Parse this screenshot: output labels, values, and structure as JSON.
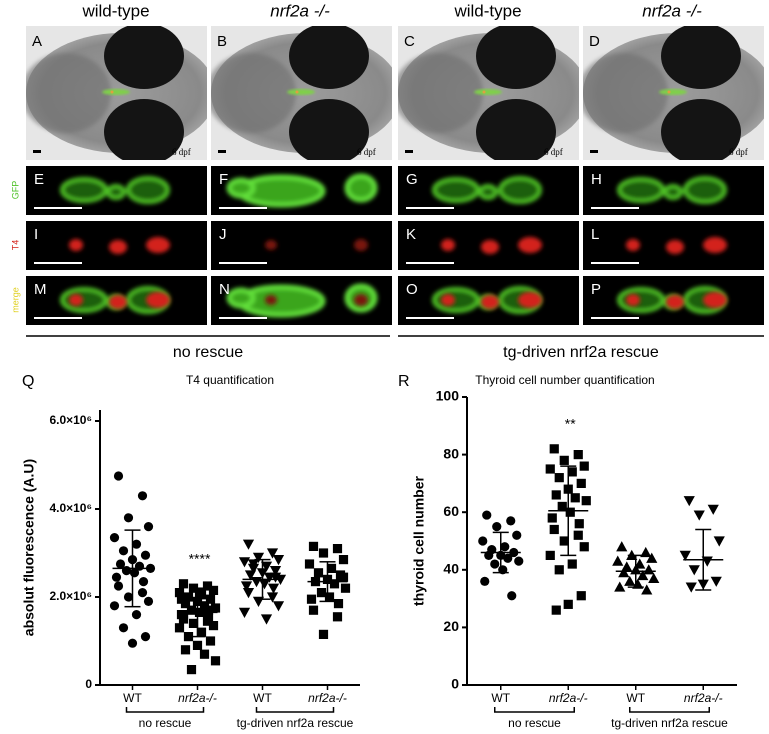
{
  "figure": {
    "columns": [
      "wild-type",
      "nrf2a -/-",
      "wild-type",
      "nrf2a -/-"
    ],
    "panels": [
      "A",
      "B",
      "C",
      "D",
      "E",
      "F",
      "G",
      "H",
      "I",
      "J",
      "K",
      "L",
      "M",
      "N",
      "O",
      "P"
    ],
    "stage": "6 dpf",
    "rows": [
      "GFP",
      "T4",
      "merge"
    ],
    "rescue_labels": [
      "no rescue",
      "tg-driven nrf2a rescue"
    ]
  },
  "chart_data": [
    {
      "type": "strip",
      "label": "Q",
      "title": "T4 quantification",
      "y_label": "absolut fluorescence (A.U)",
      "ylim": [
        0,
        6250000
      ],
      "yticks": [
        0,
        {
          "value": 2000000,
          "label": "2.0×10⁶"
        },
        {
          "value": 4000000,
          "label": "4.0×10⁶"
        },
        {
          "value": 6000000,
          "label": "6.0×10⁶"
        }
      ],
      "categories": [
        "WT",
        "nrf2a-/-",
        "WT",
        "nrf2a-/-"
      ],
      "groups": [
        "no rescue",
        "tg-driven nrf2a rescue"
      ],
      "series": [
        {
          "marker": "circle",
          "color": "#000",
          "mean": 2650000,
          "sd": 870000,
          "values": [
            4750000,
            4300000,
            3800000,
            3600000,
            3350000,
            3200000,
            3050000,
            2950000,
            2850000,
            2750000,
            2700000,
            2650000,
            2600000,
            2550000,
            2450000,
            2350000,
            2250000,
            2100000,
            2000000,
            1900000,
            1800000,
            1600000,
            1300000,
            1100000,
            950000
          ]
        },
        {
          "marker": "square",
          "color": "#000",
          "mean": 1650000,
          "sd": 550000,
          "significance": "****",
          "values": [
            2300000,
            2250000,
            2200000,
            2150000,
            2100000,
            2050000,
            2000000,
            1950000,
            1900000,
            1850000,
            1800000,
            1750000,
            1700000,
            1650000,
            1600000,
            1550000,
            1500000,
            1450000,
            1400000,
            1350000,
            1300000,
            1200000,
            1100000,
            1000000,
            900000,
            800000,
            700000,
            550000,
            350000,
            2100000,
            1950000,
            1700000,
            1600000
          ]
        },
        {
          "marker": "triangle-down",
          "color": "#000",
          "mean": 2400000,
          "sd": 450000,
          "values": [
            3200000,
            3000000,
            2900000,
            2850000,
            2800000,
            2700000,
            2650000,
            2600000,
            2550000,
            2500000,
            2450000,
            2400000,
            2350000,
            2300000,
            2250000,
            2200000,
            2100000,
            2000000,
            1900000,
            1800000,
            1650000,
            1500000,
            2750000,
            2450000
          ]
        },
        {
          "marker": "square",
          "color": "#000",
          "mean": 2350000,
          "sd": 450000,
          "values": [
            3150000,
            3100000,
            3000000,
            2850000,
            2750000,
            2650000,
            2550000,
            2500000,
            2400000,
            2350000,
            2300000,
            2200000,
            2100000,
            2000000,
            1950000,
            1850000,
            1700000,
            1550000,
            1150000,
            2450000
          ]
        }
      ]
    },
    {
      "type": "strip",
      "label": "R",
      "title": "Thyroid cell number quantification",
      "y_label": "thyroid cell number",
      "ylim": [
        0,
        100
      ],
      "yticks": [
        0,
        20,
        40,
        60,
        80,
        100
      ],
      "categories": [
        "WT",
        "nrf2a-/-",
        "WT",
        "nrf2a-/-"
      ],
      "groups": [
        "no rescue",
        "tg-driven nrf2a rescue"
      ],
      "series": [
        {
          "marker": "circle",
          "color": "#000",
          "mean": 46,
          "sd": 7,
          "values": [
            59,
            57,
            55,
            52,
            50,
            48,
            47,
            46,
            45,
            45,
            44,
            43,
            42,
            40,
            36,
            31
          ]
        },
        {
          "marker": "square",
          "color": "#000",
          "mean": 60.5,
          "sd": 15.5,
          "significance": "**",
          "values": [
            82,
            80,
            78,
            76,
            75,
            74,
            72,
            70,
            68,
            66,
            65,
            64,
            62,
            60,
            58,
            56,
            54,
            52,
            50,
            48,
            45,
            42,
            40,
            31,
            28,
            26
          ]
        },
        {
          "marker": "triangle-up",
          "color": "#000",
          "mean": 39.5,
          "sd": 5.5,
          "values": [
            48,
            46,
            45,
            44,
            43,
            42,
            41,
            40,
            40,
            39,
            38,
            37,
            36,
            35,
            34,
            33
          ]
        },
        {
          "marker": "triangle-down",
          "color": "#000",
          "mean": 43.5,
          "sd": 10.5,
          "values": [
            64,
            61,
            59,
            50,
            45,
            43,
            40,
            36,
            35,
            34
          ]
        }
      ]
    }
  ]
}
